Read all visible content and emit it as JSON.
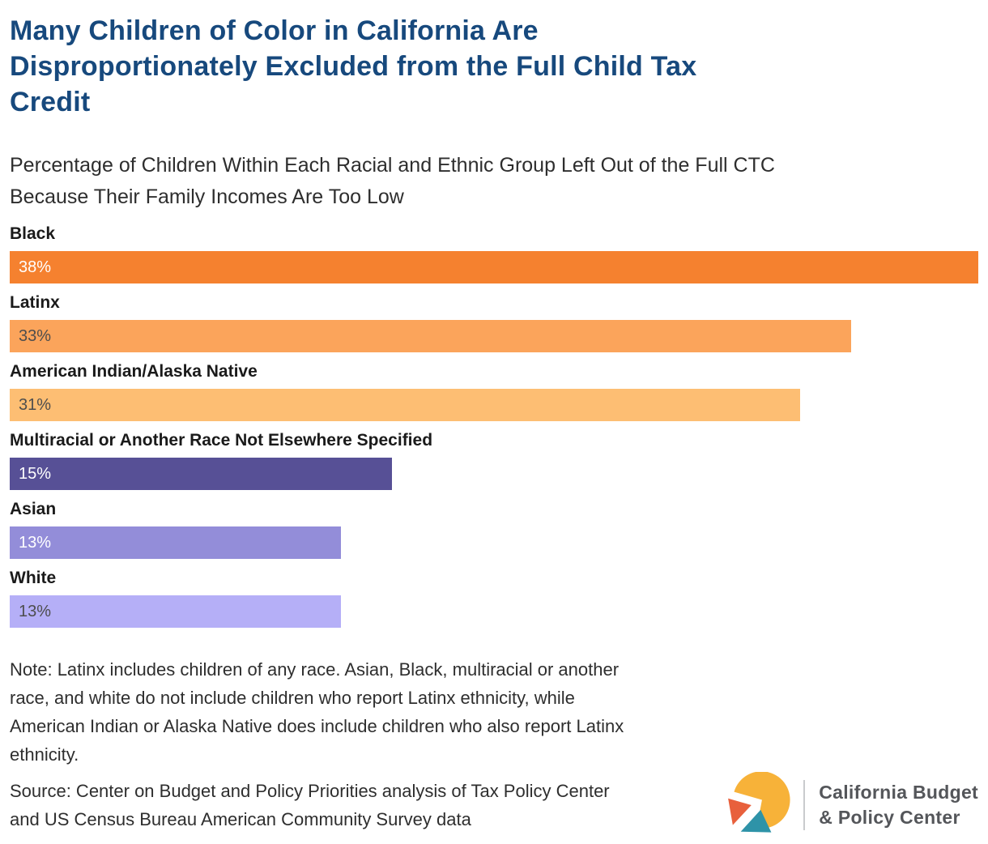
{
  "header": {
    "title_lines": [
      "Many Children of Color in California Are",
      "Disproportionately Excluded from the Full Child Tax",
      "Credit"
    ],
    "subtitle_lines": [
      "Percentage of Children Within Each Racial and Ethnic Group Left Out of the Full CTC",
      "Because Their Family Incomes Are Too Low"
    ]
  },
  "chart_data": {
    "type": "bar",
    "orientation": "horizontal",
    "title": "Many Children of Color in California Are Disproportionately Excluded from the Full Child Tax Credit",
    "subtitle": "Percentage of Children Within Each Racial and Ethnic Group Left Out of the Full CTC Because Their Family Incomes Are Too Low",
    "categories": [
      "Black",
      "Latinx",
      "American Indian/Alaska Native",
      "Multiracial or Another Race Not Elsewhere Specified",
      "Asian",
      "White"
    ],
    "values": [
      38,
      33,
      31,
      15,
      13,
      13
    ],
    "value_labels": [
      "38%",
      "33%",
      "31%",
      "15%",
      "13%",
      "13%"
    ],
    "bar_colors": [
      "#F5812F",
      "#FBA45B",
      "#FDBE73",
      "#575096",
      "#938DD9",
      "#B5AFF7"
    ],
    "value_label_colors": [
      "#FFFFFF",
      "#4D4D4D",
      "#4D4D4D",
      "#FFFFFF",
      "#FFFFFF",
      "#4D4D4D"
    ],
    "xlabel": "",
    "ylabel": "",
    "xlim": [
      0,
      38
    ],
    "grid": false,
    "legend": "none",
    "axis_ticks_visible": false
  },
  "note": {
    "lines": [
      "Note: Latinx includes children of any race. Asian, Black, multiracial or another",
      "race, and white do not include children who report Latinx ethnicity, while",
      "American Indian or Alaska Native does include children who also report Latinx",
      "ethnicity."
    ]
  },
  "source": {
    "lines": [
      "Source: Center on Budget and Policy Priorities analysis of Tax Policy Center",
      "and US Census Bureau American Community Survey data"
    ]
  },
  "logo": {
    "org_name_lines": [
      "California Budget",
      "& Policy Center"
    ],
    "mark_icon": "pie-arrow-icon",
    "colors": {
      "yellow": "#F7B239",
      "red_orange": "#E8603C",
      "teal": "#2E93A8",
      "text": "#54565A",
      "divider": "#C9CBCD"
    }
  },
  "colors": {
    "title": "#17497D",
    "body_text": "#2E2E2E",
    "category_label": "#1A1A1A"
  }
}
